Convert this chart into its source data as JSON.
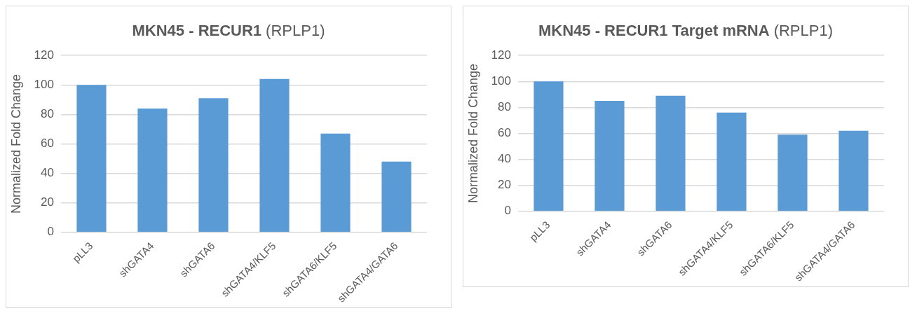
{
  "chart_data": [
    {
      "type": "bar",
      "title": "MKN45 - RECUR1",
      "subtitle": "(RPLP1)",
      "ylabel": "Normalized Fold Change",
      "categories": [
        "pLL3",
        "shGATA4",
        "shGATA6",
        "shGATA4/KLF5",
        "shGATA6/KLF5",
        "shGATA4/GATA6"
      ],
      "values": [
        100,
        84,
        91,
        104,
        67,
        48
      ],
      "color": "#5b9bd5",
      "ylim": [
        0,
        120
      ],
      "yticks": [
        0,
        20,
        40,
        60,
        80,
        100,
        120
      ],
      "grid": "y",
      "legend": false
    },
    {
      "type": "bar",
      "title": "MKN45 - RECUR1 Target mRNA",
      "subtitle": "(RPLP1)",
      "ylabel": "Normalized Fold Change",
      "categories": [
        "pLL3",
        "shGATA4",
        "shGATA6",
        "shGATA4/KLF5",
        "shGATA6/KLF5",
        "shGATA4/GATA6"
      ],
      "values": [
        100,
        85,
        89,
        76,
        59,
        62
      ],
      "color": "#5b9bd5",
      "ylim": [
        0,
        120
      ],
      "yticks": [
        0,
        20,
        40,
        60,
        80,
        100,
        120
      ],
      "grid": "y",
      "legend": false
    }
  ]
}
